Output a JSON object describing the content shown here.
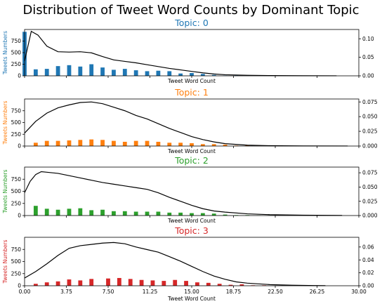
{
  "chart_data": {
    "type": "bar",
    "title": "Distribution of Tweet Word Counts by Dominant Topic",
    "xlabel": "Tweet Word Count",
    "ylabel": "Tweets Numbers",
    "xlim": [
      0,
      30
    ],
    "xticks": [
      "0.00",
      "3.75",
      "7.50",
      "11.25",
      "15.00",
      "18.75",
      "22.50",
      "26.25",
      "30.00"
    ],
    "panels": [
      {
        "title": "Topic: 0",
        "color": "#1f77b4",
        "ylim": [
          0,
          1000
        ],
        "yticks": [
          0,
          250,
          500,
          750
        ],
        "y2lim": [
          0,
          0.125
        ],
        "y2ticks": [
          "0.00",
          "0.05",
          "0.10"
        ],
        "bars": [
          [
            0,
            950
          ],
          [
            1,
            140
          ],
          [
            2,
            150
          ],
          [
            3,
            210
          ],
          [
            4,
            230
          ],
          [
            5,
            200
          ],
          [
            6,
            250
          ],
          [
            7,
            180
          ],
          [
            8,
            130
          ],
          [
            9,
            150
          ],
          [
            10,
            120
          ],
          [
            11,
            100
          ],
          [
            12,
            110
          ],
          [
            13,
            100
          ],
          [
            14,
            50
          ],
          [
            15,
            60
          ],
          [
            16,
            40
          ],
          [
            17,
            20
          ],
          [
            18,
            8
          ],
          [
            19,
            10
          ],
          [
            20,
            3
          ],
          [
            21,
            2
          ],
          [
            22,
            2
          ]
        ],
        "density": [
          [
            0,
            0.04
          ],
          [
            0.6,
            0.12
          ],
          [
            1.2,
            0.11
          ],
          [
            2,
            0.08
          ],
          [
            3,
            0.065
          ],
          [
            4,
            0.064
          ],
          [
            5,
            0.065
          ],
          [
            6,
            0.062
          ],
          [
            7,
            0.052
          ],
          [
            8,
            0.043
          ],
          [
            9,
            0.039
          ],
          [
            10,
            0.035
          ],
          [
            11,
            0.03
          ],
          [
            12,
            0.025
          ],
          [
            13,
            0.02
          ],
          [
            14,
            0.016
          ],
          [
            15,
            0.012
          ],
          [
            16,
            0.008
          ],
          [
            17,
            0.005
          ],
          [
            18,
            0.003
          ],
          [
            20,
            0.0015
          ],
          [
            22,
            0.0008
          ],
          [
            25,
            0.0003
          ],
          [
            28,
            0.0001
          ]
        ]
      },
      {
        "title": "Topic: 1",
        "color": "#ff7f0e",
        "ylim": [
          0,
          1000
        ],
        "yticks": [
          0,
          250,
          500,
          750
        ],
        "y2lim": [
          0,
          0.08
        ],
        "y2ticks": [
          "0.000",
          "0.025",
          "0.050",
          "0.075"
        ],
        "bars": [
          [
            1,
            70
          ],
          [
            2,
            110
          ],
          [
            3,
            110
          ],
          [
            4,
            120
          ],
          [
            5,
            130
          ],
          [
            6,
            140
          ],
          [
            7,
            130
          ],
          [
            8,
            110
          ],
          [
            9,
            90
          ],
          [
            10,
            110
          ],
          [
            11,
            110
          ],
          [
            12,
            90
          ],
          [
            13,
            70
          ],
          [
            14,
            70
          ],
          [
            15,
            60
          ],
          [
            16,
            40
          ],
          [
            17,
            40
          ],
          [
            18,
            30
          ],
          [
            19,
            10
          ],
          [
            20,
            15
          ],
          [
            21,
            2
          ],
          [
            22,
            2
          ]
        ],
        "density": [
          [
            0,
            0.022
          ],
          [
            1,
            0.042
          ],
          [
            2,
            0.056
          ],
          [
            3,
            0.065
          ],
          [
            4,
            0.07
          ],
          [
            5,
            0.074
          ],
          [
            6,
            0.075
          ],
          [
            7,
            0.072
          ],
          [
            8,
            0.066
          ],
          [
            9,
            0.06
          ],
          [
            10,
            0.052
          ],
          [
            11,
            0.046
          ],
          [
            12,
            0.038
          ],
          [
            13,
            0.03
          ],
          [
            14,
            0.023
          ],
          [
            15,
            0.016
          ],
          [
            16,
            0.011
          ],
          [
            17,
            0.007
          ],
          [
            18,
            0.004
          ],
          [
            20,
            0.0015
          ],
          [
            22,
            0.0006
          ],
          [
            25,
            0.0002
          ],
          [
            29,
            0.0001
          ]
        ]
      },
      {
        "title": "Topic: 2",
        "color": "#2ca02c",
        "ylim": [
          0,
          1000
        ],
        "yticks": [
          0,
          250,
          500,
          750
        ],
        "y2lim": [
          0,
          0.085
        ],
        "y2ticks": [
          "0.000",
          "0.025",
          "0.050",
          "0.075"
        ],
        "bars": [
          [
            1,
            200
          ],
          [
            2,
            140
          ],
          [
            3,
            120
          ],
          [
            4,
            140
          ],
          [
            5,
            150
          ],
          [
            6,
            110
          ],
          [
            7,
            120
          ],
          [
            8,
            90
          ],
          [
            9,
            90
          ],
          [
            10,
            80
          ],
          [
            11,
            80
          ],
          [
            12,
            80
          ],
          [
            13,
            60
          ],
          [
            14,
            60
          ],
          [
            15,
            50
          ],
          [
            16,
            50
          ],
          [
            17,
            40
          ],
          [
            18,
            20
          ],
          [
            19,
            10
          ],
          [
            20,
            10
          ],
          [
            21,
            5
          ],
          [
            22,
            3
          ]
        ],
        "density": [
          [
            0,
            0.04
          ],
          [
            0.5,
            0.06
          ],
          [
            1,
            0.072
          ],
          [
            1.5,
            0.077
          ],
          [
            2,
            0.076
          ],
          [
            3,
            0.074
          ],
          [
            4,
            0.07
          ],
          [
            5,
            0.066
          ],
          [
            6,
            0.062
          ],
          [
            7,
            0.058
          ],
          [
            8,
            0.055
          ],
          [
            9,
            0.052
          ],
          [
            10,
            0.049
          ],
          [
            11,
            0.046
          ],
          [
            12,
            0.04
          ],
          [
            13,
            0.032
          ],
          [
            14,
            0.025
          ],
          [
            15,
            0.018
          ],
          [
            16,
            0.012
          ],
          [
            17,
            0.008
          ],
          [
            18,
            0.006
          ],
          [
            20,
            0.003
          ],
          [
            22,
            0.0015
          ],
          [
            25,
            0.0006
          ],
          [
            28.5,
            0.0002
          ]
        ]
      },
      {
        "title": "Topic: 3",
        "color": "#d62728",
        "ylim": [
          0,
          1000
        ],
        "yticks": [
          0,
          250,
          500,
          750
        ],
        "y2lim": [
          0,
          0.075
        ],
        "y2ticks": [
          "0.00",
          "0.02",
          "0.04",
          "0.06"
        ],
        "bars": [
          [
            1,
            40
          ],
          [
            2,
            70
          ],
          [
            3,
            90
          ],
          [
            4,
            130
          ],
          [
            5,
            110
          ],
          [
            6,
            140
          ],
          [
            7.5,
            150
          ],
          [
            8.5,
            160
          ],
          [
            9.5,
            140
          ],
          [
            10.5,
            120
          ],
          [
            11.5,
            110
          ],
          [
            12.5,
            100
          ],
          [
            13.5,
            120
          ],
          [
            14.5,
            100
          ],
          [
            15.5,
            70
          ],
          [
            16.5,
            60
          ],
          [
            17.5,
            40
          ],
          [
            18.5,
            20
          ],
          [
            19.5,
            30
          ],
          [
            20.5,
            10
          ],
          [
            21.5,
            10
          ]
        ],
        "density": [
          [
            0,
            0.012
          ],
          [
            1,
            0.022
          ],
          [
            2,
            0.034
          ],
          [
            3,
            0.047
          ],
          [
            4,
            0.058
          ],
          [
            5,
            0.062
          ],
          [
            6,
            0.064
          ],
          [
            7,
            0.066
          ],
          [
            8,
            0.067
          ],
          [
            9,
            0.065
          ],
          [
            10,
            0.06
          ],
          [
            11,
            0.056
          ],
          [
            12,
            0.052
          ],
          [
            13,
            0.045
          ],
          [
            14,
            0.038
          ],
          [
            15,
            0.03
          ],
          [
            16,
            0.022
          ],
          [
            17,
            0.015
          ],
          [
            18,
            0.01
          ],
          [
            19,
            0.006
          ],
          [
            20,
            0.004
          ],
          [
            22,
            0.0018
          ],
          [
            24,
            0.0008
          ],
          [
            26,
            0.0003
          ],
          [
            27,
            0.0001
          ]
        ]
      }
    ]
  }
}
